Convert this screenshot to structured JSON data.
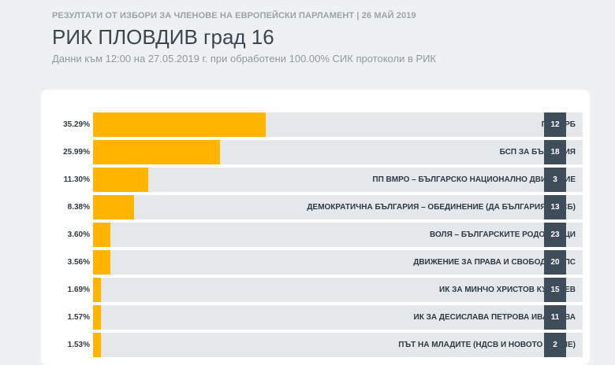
{
  "header": {
    "supertitle": "РЕЗУЛТАТИ ОТ ИЗБОРИ ЗА ЧЛЕНОВЕ НА ЕВРОПЕЙСКИ ПАРЛАМЕНТ | 26 МАЙ 2019",
    "title": "РИК ПЛОВДИВ град 16",
    "subtitle": "Данни към 12:00 на 27.05.2019 г. при обработени 100.00% СИК протоколи в РИК"
  },
  "colors": {
    "bar": "#ffb400",
    "track": "#e4e8eb",
    "badge": "#3f4c5a"
  },
  "chart_data": {
    "type": "bar",
    "orientation": "horizontal",
    "xlim": [
      0,
      100
    ],
    "grid": false,
    "categories": [
      "ПП ГЕРБ",
      "БСП ЗА БЪЛГАРИЯ",
      "ПП ВМРО – БЪЛГАРСКО НАЦИОНАЛНО ДВИЖЕНИЕ",
      "ДЕМОКРАТИЧНА БЪЛГАРИЯ – ОБЕДИНЕНИЕ (ДА БЪЛГАРИЯ И ДСБ)",
      "ВОЛЯ – БЪЛГАРСКИТЕ РОДОЛЮБЦИ",
      "ДВИЖЕНИЕ ЗА ПРАВА И СВОБОДИ - ДПС",
      "ИК ЗА МИНЧО ХРИСТОВ КУМИНЕВ",
      "ИК ЗА ДЕСИСЛАВА ПЕТРОВА ИВАНЧЕВА",
      "ПЪТ НА МЛАДИТЕ (НДСВ И НОВОТО ВРЕМЕ)"
    ],
    "values": [
      35.29,
      25.99,
      11.3,
      8.38,
      3.6,
      3.56,
      1.69,
      1.57,
      1.53
    ],
    "value_labels": [
      "35.29%",
      "25.99%",
      "11.30%",
      "8.38%",
      "3.60%",
      "3.56%",
      "1.69%",
      "1.57%",
      "1.53%"
    ],
    "ballot_numbers": [
      "12",
      "18",
      "3",
      "13",
      "23",
      "20",
      "15",
      "11",
      "2"
    ]
  }
}
